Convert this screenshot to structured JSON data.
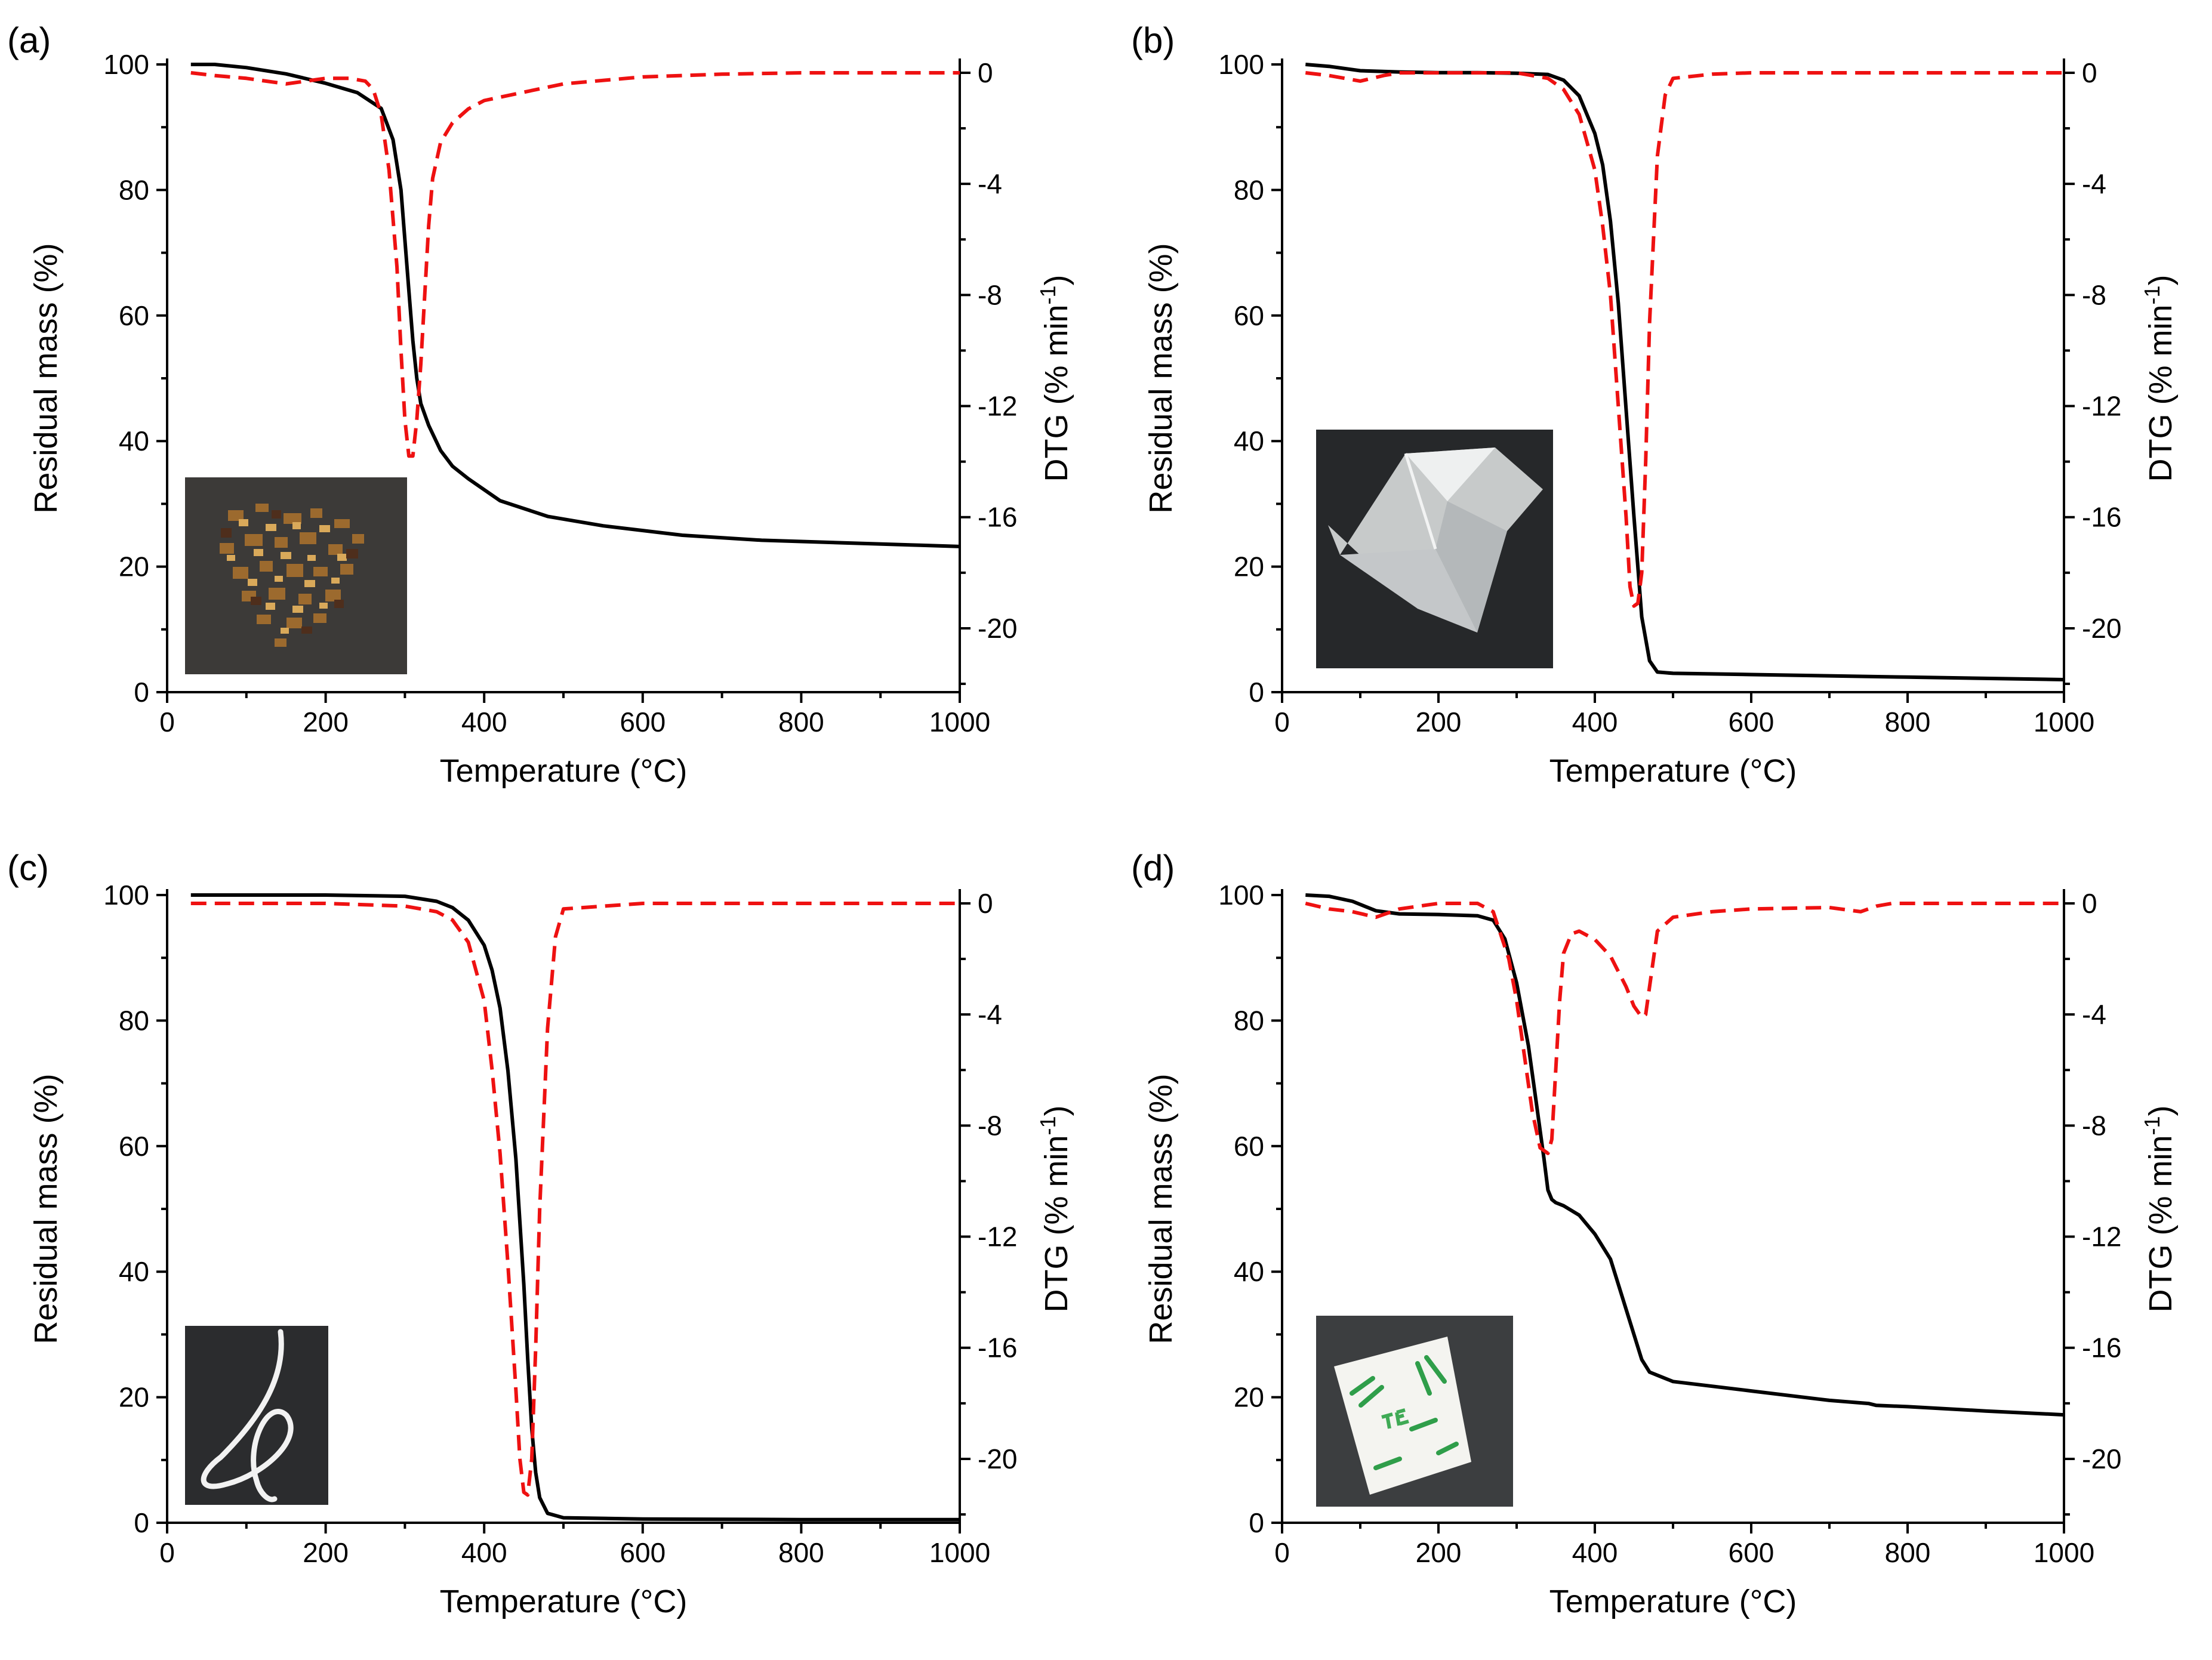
{
  "chart_data": [
    {
      "panel": "(a)",
      "type": "line",
      "xlabel": "Temperature (°C)",
      "ylabel": "Residual mass (%)",
      "y2label_main": "DTG (% min",
      "y2label_sup": "-1",
      "y2label_close": ")",
      "xlim": [
        0,
        1000
      ],
      "ylim": [
        0,
        100
      ],
      "y2lim": [
        -22.3,
        0.3
      ],
      "xticks": [
        0,
        200,
        400,
        600,
        800,
        1000
      ],
      "yticks": [
        0,
        20,
        40,
        60,
        80,
        100
      ],
      "y2ticks": [
        0,
        -4,
        -8,
        -12,
        -16,
        -20
      ],
      "inset": "photo of shredded brown tea leaves",
      "series": [
        {
          "name": "Residual mass",
          "axis": "left",
          "style": "solid",
          "color": "#000000",
          "x": [
            30,
            60,
            100,
            150,
            200,
            240,
            270,
            285,
            295,
            300,
            305,
            310,
            315,
            320,
            330,
            345,
            360,
            380,
            420,
            480,
            550,
            650,
            750,
            850,
            950,
            1000
          ],
          "y": [
            100,
            100,
            99.5,
            98.5,
            97,
            95.5,
            93,
            88,
            80,
            72,
            64,
            56,
            50,
            46,
            42.5,
            38.5,
            36,
            34,
            30.5,
            28,
            26.5,
            25,
            24.2,
            23.8,
            23.4,
            23.2
          ]
        },
        {
          "name": "DTG",
          "axis": "right",
          "style": "dashed",
          "color": "#ee1111",
          "x": [
            30,
            60,
            100,
            150,
            200,
            230,
            250,
            260,
            270,
            280,
            290,
            295,
            300,
            305,
            310,
            315,
            320,
            325,
            330,
            335,
            345,
            360,
            380,
            400,
            450,
            500,
            600,
            700,
            800,
            1000
          ],
          "y": [
            0,
            -0.1,
            -0.2,
            -0.4,
            -0.2,
            -0.2,
            -0.3,
            -0.6,
            -1.5,
            -3.5,
            -7,
            -10,
            -12.5,
            -13.8,
            -13.8,
            -12.5,
            -10.5,
            -8,
            -5.5,
            -3.8,
            -2.5,
            -1.8,
            -1.3,
            -1.0,
            -0.7,
            -0.4,
            -0.15,
            -0.05,
            0,
            0
          ]
        }
      ]
    },
    {
      "panel": "(b)",
      "type": "line",
      "xlabel": "Temperature (°C)",
      "ylabel": "Residual mass (%)",
      "y2label_main": "DTG (% min",
      "y2label_sup": "-1",
      "y2label_close": ")",
      "xlim": [
        0,
        1000
      ],
      "ylim": [
        0,
        100
      ],
      "y2lim": [
        -22.3,
        0.3
      ],
      "xticks": [
        0,
        200,
        400,
        600,
        800,
        1000
      ],
      "yticks": [
        0,
        20,
        40,
        60,
        80,
        100
      ],
      "y2ticks": [
        0,
        -4,
        -8,
        -12,
        -16,
        -20
      ],
      "inset": "photo of transparent plastic tea bag",
      "series": [
        {
          "name": "Residual mass",
          "axis": "left",
          "style": "solid",
          "color": "#000000",
          "x": [
            30,
            60,
            100,
            150,
            200,
            250,
            300,
            340,
            360,
            380,
            400,
            410,
            420,
            430,
            440,
            450,
            460,
            470,
            480,
            500,
            600,
            800,
            1000
          ],
          "y": [
            100,
            99.7,
            99,
            98.8,
            98.7,
            98.7,
            98.6,
            98.4,
            97.5,
            95,
            89,
            84,
            75,
            62,
            45,
            28,
            12,
            5,
            3.2,
            3,
            2.8,
            2.4,
            2
          ]
        },
        {
          "name": "DTG",
          "axis": "right",
          "style": "dashed",
          "color": "#ee1111",
          "x": [
            30,
            60,
            100,
            130,
            150,
            200,
            250,
            300,
            340,
            360,
            380,
            390,
            400,
            410,
            420,
            430,
            440,
            445,
            450,
            455,
            460,
            465,
            470,
            480,
            490,
            500,
            550,
            600,
            700,
            800,
            1000
          ],
          "y": [
            0,
            -0.1,
            -0.3,
            -0.1,
            0,
            0,
            0,
            0,
            -0.2,
            -0.6,
            -1.5,
            -2.5,
            -3.5,
            -5.5,
            -8,
            -12,
            -16,
            -18.5,
            -19.2,
            -19.1,
            -18,
            -14,
            -9,
            -3,
            -0.8,
            -0.2,
            -0.05,
            0,
            0,
            0,
            0
          ]
        }
      ]
    },
    {
      "panel": "(c)",
      "type": "line",
      "xlabel": "Temperature (°C)",
      "ylabel": "Residual mass (%)",
      "y2label_main": "DTG (% min",
      "y2label_sup": "-1",
      "y2label_close": ")",
      "xlim": [
        0,
        1000
      ],
      "ylim": [
        0,
        100
      ],
      "y2lim": [
        -22.3,
        0.3
      ],
      "xticks": [
        0,
        200,
        400,
        600,
        800,
        1000
      ],
      "yticks": [
        0,
        20,
        40,
        60,
        80,
        100
      ],
      "y2ticks": [
        0,
        -4,
        -8,
        -12,
        -16,
        -20
      ],
      "inset": "photo of white string",
      "series": [
        {
          "name": "Residual mass",
          "axis": "left",
          "style": "solid",
          "color": "#000000",
          "x": [
            30,
            100,
            200,
            300,
            340,
            360,
            380,
            400,
            410,
            420,
            430,
            440,
            450,
            455,
            460,
            465,
            470,
            480,
            500,
            600,
            800,
            1000
          ],
          "y": [
            100,
            100,
            100,
            99.8,
            99,
            98,
            96,
            92,
            88,
            82,
            72,
            58,
            38,
            26,
            15,
            8,
            4,
            1.5,
            0.8,
            0.6,
            0.5,
            0.5
          ]
        },
        {
          "name": "DTG",
          "axis": "right",
          "style": "dashed",
          "color": "#ee1111",
          "x": [
            30,
            100,
            200,
            300,
            340,
            360,
            380,
            400,
            410,
            420,
            430,
            440,
            445,
            450,
            455,
            460,
            465,
            470,
            480,
            490,
            500,
            600,
            800,
            1000
          ],
          "y": [
            0,
            0,
            0,
            -0.1,
            -0.3,
            -0.6,
            -1.4,
            -3.5,
            -6,
            -9,
            -13,
            -17.5,
            -20,
            -21.2,
            -21.3,
            -20,
            -16,
            -11,
            -4.5,
            -1.2,
            -0.2,
            0,
            0,
            0
          ]
        }
      ]
    },
    {
      "panel": "(d)",
      "type": "line",
      "xlabel": "Temperature (°C)",
      "ylabel": "Residual mass (%)",
      "y2label_main": "DTG (% min",
      "y2label_sup": "-1",
      "y2label_close": ")",
      "xlim": [
        0,
        1000
      ],
      "ylim": [
        0,
        100
      ],
      "y2lim": [
        -22.3,
        0.3
      ],
      "xticks": [
        0,
        200,
        400,
        600,
        800,
        1000
      ],
      "yticks": [
        0,
        20,
        40,
        60,
        80,
        100
      ],
      "y2ticks": [
        0,
        -4,
        -8,
        -12,
        -16,
        -20
      ],
      "inset": "photo of paper tea tag with green print",
      "series": [
        {
          "name": "Residual mass",
          "axis": "left",
          "style": "solid",
          "color": "#000000",
          "x": [
            30,
            60,
            90,
            120,
            150,
            200,
            250,
            270,
            285,
            300,
            315,
            325,
            335,
            340,
            345,
            350,
            360,
            380,
            400,
            420,
            440,
            460,
            470,
            480,
            500,
            600,
            700,
            750,
            760,
            800,
            900,
            1000
          ],
          "y": [
            100,
            99.8,
            99,
            97.5,
            97,
            96.9,
            96.7,
            96,
            93,
            86,
            76,
            67,
            58,
            53,
            51.5,
            51,
            50.5,
            49,
            46,
            42,
            34,
            26,
            24,
            23.5,
            22.5,
            21,
            19.5,
            19,
            18.7,
            18.5,
            17.8,
            17.2
          ]
        },
        {
          "name": "DTG",
          "axis": "right",
          "style": "dashed",
          "color": "#ee1111",
          "x": [
            30,
            60,
            90,
            120,
            150,
            200,
            250,
            270,
            290,
            300,
            310,
            320,
            330,
            340,
            345,
            350,
            355,
            360,
            370,
            380,
            400,
            420,
            440,
            450,
            460,
            465,
            470,
            480,
            500,
            550,
            600,
            700,
            740,
            760,
            780,
            800,
            1000
          ],
          "y": [
            0,
            -0.2,
            -0.3,
            -0.5,
            -0.2,
            0,
            0,
            -0.3,
            -2,
            -3.5,
            -5.5,
            -7.5,
            -8.8,
            -9,
            -8.5,
            -6,
            -3.5,
            -1.8,
            -1.1,
            -1.0,
            -1.3,
            -1.9,
            -3,
            -3.7,
            -4.1,
            -4.0,
            -3,
            -1,
            -0.5,
            -0.3,
            -0.2,
            -0.15,
            -0.3,
            -0.1,
            0,
            0,
            0
          ]
        }
      ]
    }
  ]
}
